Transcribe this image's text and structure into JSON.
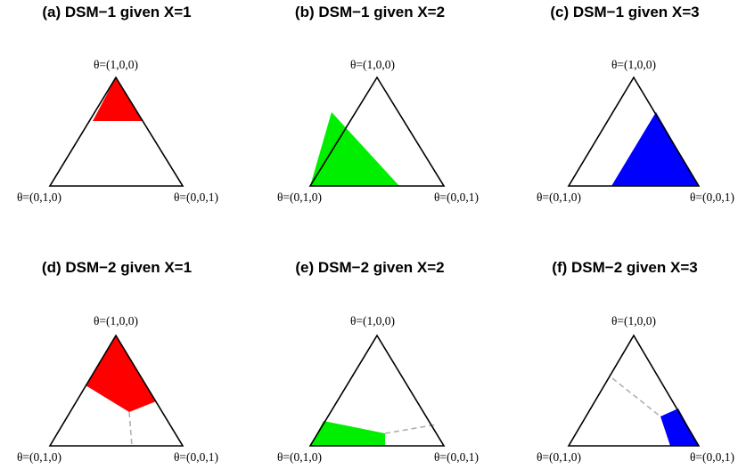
{
  "colors": {
    "red": "#ff0000",
    "green": "#00ee00",
    "blue": "#0000ff",
    "dashed_line": "#b0b0b0",
    "outline": "#000000"
  },
  "panels": [
    {
      "title": "(a) DSM−1 given X=1",
      "labels": {
        "top": "θ=(1,0,0)",
        "left": "θ=(0,1,0)",
        "right": "θ=(0,0,1)"
      },
      "fill_color": "red"
    },
    {
      "title": "(b) DSM−1 given X=2",
      "labels": {
        "top": "θ=(1,0,0)",
        "left": "θ=(0,1,0)",
        "right": "θ=(0,0,1)"
      },
      "fill_color": "green"
    },
    {
      "title": "(c) DSM−1 given X=3",
      "labels": {
        "top": "θ=(1,0,0)",
        "left": "θ=(0,1,0)",
        "right": "θ=(0,0,1)"
      },
      "fill_color": "blue"
    },
    {
      "title": "(d) DSM−2 given X=1",
      "labels": {
        "top": "θ=(1,0,0)",
        "left": "θ=(0,1,0)",
        "right": "θ=(0,0,1)"
      },
      "fill_color": "red"
    },
    {
      "title": "(e) DSM−2 given X=2",
      "labels": {
        "top": "θ=(1,0,0)",
        "left": "θ=(0,1,0)",
        "right": "θ=(0,0,1)"
      },
      "fill_color": "green"
    },
    {
      "title": "(f) DSM−2 given X=3",
      "labels": {
        "top": "θ=(1,0,0)",
        "left": "θ=(0,1,0)",
        "right": "θ=(0,0,1)"
      },
      "fill_color": "blue"
    }
  ]
}
